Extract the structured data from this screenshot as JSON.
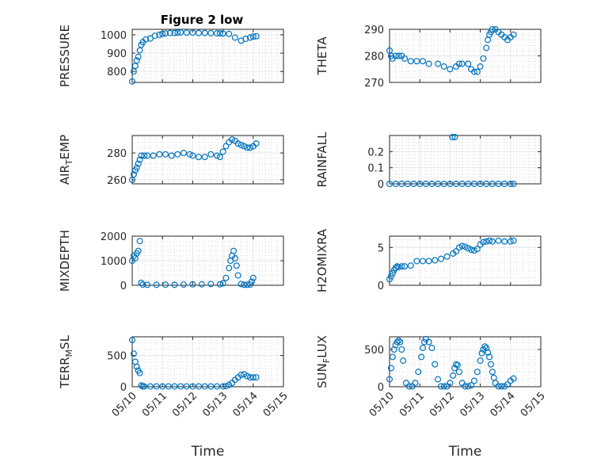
{
  "figure_title": "Figure 2 low",
  "x_axis_label": "Time",
  "x_tick_labels": [
    "05/10",
    "05/11",
    "05/12",
    "05/13",
    "05/14",
    "05/15"
  ],
  "marker_color": "#0072BD",
  "chart_data": [
    {
      "type": "scatter",
      "title": "Figure 2 low",
      "ylabel": "PRESSURE",
      "yticks": [
        "800",
        "900",
        "1000"
      ],
      "xlim": [
        0,
        5
      ],
      "ylim": [
        740,
        1030
      ],
      "xlabel": "",
      "x": [
        0.0,
        0.05,
        0.1,
        0.15,
        0.2,
        0.25,
        0.3,
        0.35,
        0.45,
        0.6,
        0.75,
        0.9,
        1.0,
        1.1,
        1.25,
        1.4,
        1.5,
        1.6,
        1.8,
        2.0,
        2.2,
        2.4,
        2.6,
        2.8,
        2.9,
        3.0,
        3.2,
        3.4,
        3.6,
        3.75,
        3.9,
        4.0,
        4.1
      ],
      "y": [
        745,
        800,
        830,
        860,
        880,
        915,
        945,
        960,
        975,
        980,
        995,
        1000,
        1005,
        1008,
        1010,
        1010,
        1012,
        1013,
        1012,
        1012,
        1010,
        1010,
        1009,
        1008,
        1008,
        1007,
        1005,
        985,
        968,
        978,
        985,
        990,
        992
      ]
    },
    {
      "type": "scatter",
      "title": "",
      "ylabel": "THETA",
      "yticks": [
        "270",
        "280",
        "290"
      ],
      "xlim": [
        0,
        5
      ],
      "ylim": [
        270,
        290
      ],
      "xlabel": "",
      "x": [
        0.0,
        0.05,
        0.1,
        0.2,
        0.3,
        0.4,
        0.5,
        0.7,
        0.9,
        1.1,
        1.3,
        1.6,
        1.8,
        2.0,
        2.2,
        2.3,
        2.4,
        2.6,
        2.7,
        2.8,
        2.9,
        3.0,
        3.1,
        3.2,
        3.25,
        3.3,
        3.35,
        3.4,
        3.5,
        3.6,
        3.7,
        3.8,
        3.9,
        4.0,
        4.1
      ],
      "y": [
        282,
        280,
        279,
        280,
        280,
        280,
        279,
        278,
        278,
        278,
        277,
        277,
        276,
        275,
        276,
        277,
        277,
        277,
        275,
        274,
        274,
        276,
        279,
        283,
        286,
        288,
        289,
        290,
        290,
        289,
        288,
        287,
        286,
        287,
        288
      ]
    },
    {
      "type": "scatter",
      "title": "",
      "ylabel": "AIR_TEMP",
      "yticks": [
        "260",
        "280"
      ],
      "xlim": [
        0,
        5
      ],
      "ylim": [
        257,
        293
      ],
      "xlabel": "",
      "x": [
        0.0,
        0.05,
        0.1,
        0.15,
        0.2,
        0.25,
        0.3,
        0.4,
        0.5,
        0.7,
        0.9,
        1.1,
        1.3,
        1.5,
        1.7,
        1.9,
        2.0,
        2.2,
        2.4,
        2.6,
        2.8,
        2.9,
        3.0,
        3.1,
        3.2,
        3.3,
        3.4,
        3.5,
        3.6,
        3.7,
        3.8,
        3.9,
        4.0,
        4.1
      ],
      "y": [
        260,
        264,
        267,
        269,
        272,
        275,
        278,
        278,
        278,
        278,
        279,
        279,
        278,
        279,
        280,
        279,
        278,
        277,
        277,
        279,
        278,
        277,
        281,
        285,
        288,
        290,
        289,
        287,
        286,
        285,
        284,
        284,
        285,
        287
      ]
    },
    {
      "type": "scatter",
      "title": "",
      "ylabel": "RAINFALL",
      "yticks": [
        "0",
        "0.1",
        "0.2"
      ],
      "xlim": [
        0,
        5
      ],
      "ylim": [
        0,
        0.3
      ],
      "xlabel": "",
      "x": [
        0.0,
        0.2,
        0.4,
        0.6,
        0.8,
        1.0,
        1.2,
        1.4,
        1.6,
        1.8,
        2.0,
        2.08,
        2.16,
        2.2,
        2.4,
        2.6,
        2.8,
        3.0,
        3.2,
        3.4,
        3.6,
        3.8,
        4.0,
        4.1
      ],
      "y": [
        0,
        0,
        0,
        0,
        0,
        0,
        0,
        0,
        0,
        0,
        0,
        0.29,
        0.29,
        0,
        0,
        0,
        0,
        0,
        0,
        0,
        0,
        0,
        0,
        0
      ]
    },
    {
      "type": "scatter",
      "title": "",
      "ylabel": "MIXDEPTH",
      "yticks": [
        "0",
        "1000",
        "2000"
      ],
      "xlim": [
        0,
        5
      ],
      "ylim": [
        0,
        2000
      ],
      "xlabel": "",
      "x": [
        0.0,
        0.05,
        0.1,
        0.15,
        0.2,
        0.25,
        0.3,
        0.35,
        0.5,
        0.8,
        1.1,
        1.4,
        1.7,
        2.0,
        2.3,
        2.6,
        2.9,
        3.0,
        3.1,
        3.2,
        3.25,
        3.3,
        3.35,
        3.4,
        3.45,
        3.5,
        3.6,
        3.7,
        3.8,
        3.9,
        3.95,
        4.0
      ],
      "y": [
        1000,
        1200,
        1100,
        1300,
        1400,
        1800,
        100,
        30,
        20,
        20,
        25,
        20,
        30,
        40,
        40,
        50,
        40,
        80,
        300,
        700,
        1000,
        1200,
        1400,
        1100,
        800,
        400,
        50,
        20,
        20,
        30,
        150,
        300
      ]
    },
    {
      "type": "scatter",
      "title": "",
      "ylabel": "H2OMIXRA",
      "yticks": [
        "0",
        "5"
      ],
      "xlim": [
        0,
        5
      ],
      "ylim": [
        0,
        6.5
      ],
      "xlabel": "",
      "x": [
        0.0,
        0.05,
        0.1,
        0.15,
        0.2,
        0.25,
        0.3,
        0.4,
        0.5,
        0.7,
        0.9,
        1.1,
        1.3,
        1.5,
        1.7,
        1.9,
        2.1,
        2.2,
        2.3,
        2.4,
        2.5,
        2.6,
        2.7,
        2.8,
        2.9,
        3.0,
        3.1,
        3.2,
        3.3,
        3.4,
        3.6,
        3.8,
        4.0,
        4.1
      ],
      "y": [
        0.8,
        1.2,
        1.6,
        2.0,
        2.3,
        2.5,
        2.4,
        2.5,
        2.5,
        2.6,
        3.2,
        3.2,
        3.2,
        3.3,
        3.5,
        3.8,
        4.2,
        4.5,
        5.0,
        5.2,
        5.1,
        4.9,
        4.7,
        4.6,
        4.8,
        5.4,
        5.7,
        5.8,
        5.9,
        5.8,
        5.9,
        5.8,
        5.8,
        5.9
      ]
    },
    {
      "type": "scatter",
      "title": "",
      "ylabel": "TERR_MSL",
      "yticks": [
        "0",
        "500"
      ],
      "xlim": [
        0,
        5
      ],
      "ylim": [
        0,
        800
      ],
      "xlabel": "Time",
      "x": [
        0.0,
        0.05,
        0.1,
        0.15,
        0.2,
        0.25,
        0.3,
        0.35,
        0.4,
        0.6,
        0.8,
        1.0,
        1.2,
        1.4,
        1.6,
        1.8,
        2.0,
        2.2,
        2.4,
        2.6,
        2.8,
        3.0,
        3.1,
        3.2,
        3.3,
        3.4,
        3.5,
        3.6,
        3.7,
        3.8,
        3.9,
        4.0,
        4.1
      ],
      "y": [
        750,
        530,
        400,
        320,
        260,
        220,
        20,
        5,
        5,
        5,
        5,
        5,
        5,
        5,
        5,
        5,
        5,
        5,
        5,
        5,
        5,
        5,
        10,
        30,
        60,
        110,
        150,
        190,
        200,
        170,
        150,
        150,
        150
      ]
    },
    {
      "type": "scatter",
      "title": "",
      "ylabel": "SUN_FLUX",
      "yticks": [
        "0",
        "500"
      ],
      "xlim": [
        0,
        5
      ],
      "ylim": [
        0,
        670
      ],
      "xlabel": "Time",
      "x": [
        0.0,
        0.05,
        0.1,
        0.15,
        0.2,
        0.25,
        0.3,
        0.35,
        0.4,
        0.45,
        0.55,
        0.65,
        0.75,
        0.85,
        0.95,
        1.05,
        1.1,
        1.15,
        1.2,
        1.3,
        1.4,
        1.5,
        1.6,
        1.7,
        1.8,
        1.9,
        2.0,
        2.1,
        2.15,
        2.2,
        2.25,
        2.3,
        2.4,
        2.5,
        2.6,
        2.7,
        2.8,
        2.9,
        3.0,
        3.05,
        3.1,
        3.15,
        3.2,
        3.25,
        3.3,
        3.35,
        3.4,
        3.45,
        3.5,
        3.6,
        3.7,
        3.8,
        3.9,
        4.0,
        4.1
      ],
      "y": [
        100,
        250,
        400,
        500,
        560,
        600,
        620,
        600,
        500,
        350,
        50,
        5,
        5,
        50,
        200,
        400,
        520,
        600,
        640,
        600,
        520,
        300,
        100,
        5,
        5,
        5,
        50,
        150,
        250,
        300,
        290,
        200,
        50,
        5,
        5,
        20,
        80,
        200,
        350,
        450,
        500,
        540,
        520,
        460,
        400,
        300,
        200,
        120,
        50,
        5,
        5,
        5,
        30,
        80,
        110
      ]
    }
  ]
}
